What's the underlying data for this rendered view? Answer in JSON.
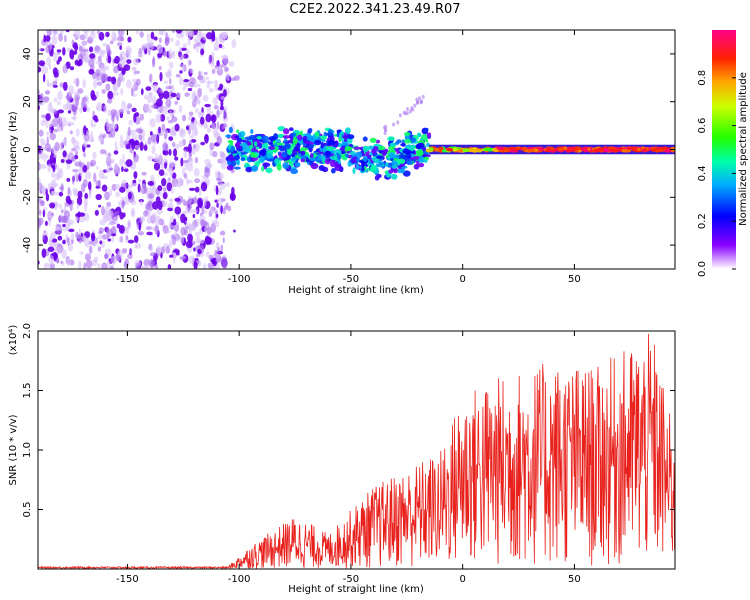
{
  "figure": {
    "title": "C2E2.2022.341.23.49.R07"
  },
  "chart_data": [
    {
      "type": "heatmap",
      "name": "spectrogram",
      "xlabel": "Height of straight line (km)",
      "ylabel": "Frequency (Hz)",
      "xlim": [
        -190,
        95
      ],
      "ylim": [
        -50,
        50
      ],
      "x_ticks": [
        -150,
        -100,
        -50,
        0,
        50
      ],
      "y_ticks": [
        -40,
        -20,
        0,
        20,
        40
      ],
      "colorbar": {
        "label": "Normalized spectral amplitude",
        "range": [
          0.0,
          1.0
        ],
        "ticks": [
          "0.0",
          "0.2",
          "0.4",
          "0.6",
          "0.8"
        ]
      },
      "regions": [
        {
          "x_range": [
            -190,
            -105
          ],
          "freq_spread": 50,
          "amplitude": 0.12,
          "description_level": "noise"
        },
        {
          "x_range": [
            -105,
            -15
          ],
          "freq_spread": 6,
          "amplitude": 0.35
        },
        {
          "x_range": [
            -15,
            95
          ],
          "freq_spread": 2,
          "amplitude": 0.95
        }
      ]
    },
    {
      "type": "line",
      "name": "snr",
      "xlabel": "Height of straight line (km)",
      "ylabel": "SNR (10 * v/v)",
      "y_multiplier": "(x10⁴)",
      "xlim": [
        -190,
        95
      ],
      "ylim": [
        0,
        2.0
      ],
      "x_ticks": [
        -150,
        -100,
        -50,
        0,
        50
      ],
      "y_ticks": [
        "0.5",
        "1.0",
        "1.5",
        "2.0"
      ],
      "color": "#e8211c",
      "envelope": [
        {
          "x": -190,
          "y": 0.01
        },
        {
          "x": -105,
          "y": 0.02
        },
        {
          "x": -95,
          "y": 0.2
        },
        {
          "x": -75,
          "y": 0.45
        },
        {
          "x": -60,
          "y": 0.3
        },
        {
          "x": -40,
          "y": 0.7
        },
        {
          "x": -25,
          "y": 0.85
        },
        {
          "x": -10,
          "y": 1.0
        },
        {
          "x": 0,
          "y": 1.5
        },
        {
          "x": 20,
          "y": 1.65
        },
        {
          "x": 40,
          "y": 1.75
        },
        {
          "x": 60,
          "y": 1.7
        },
        {
          "x": 85,
          "y": 2.0
        },
        {
          "x": 95,
          "y": 1.1
        }
      ]
    }
  ]
}
